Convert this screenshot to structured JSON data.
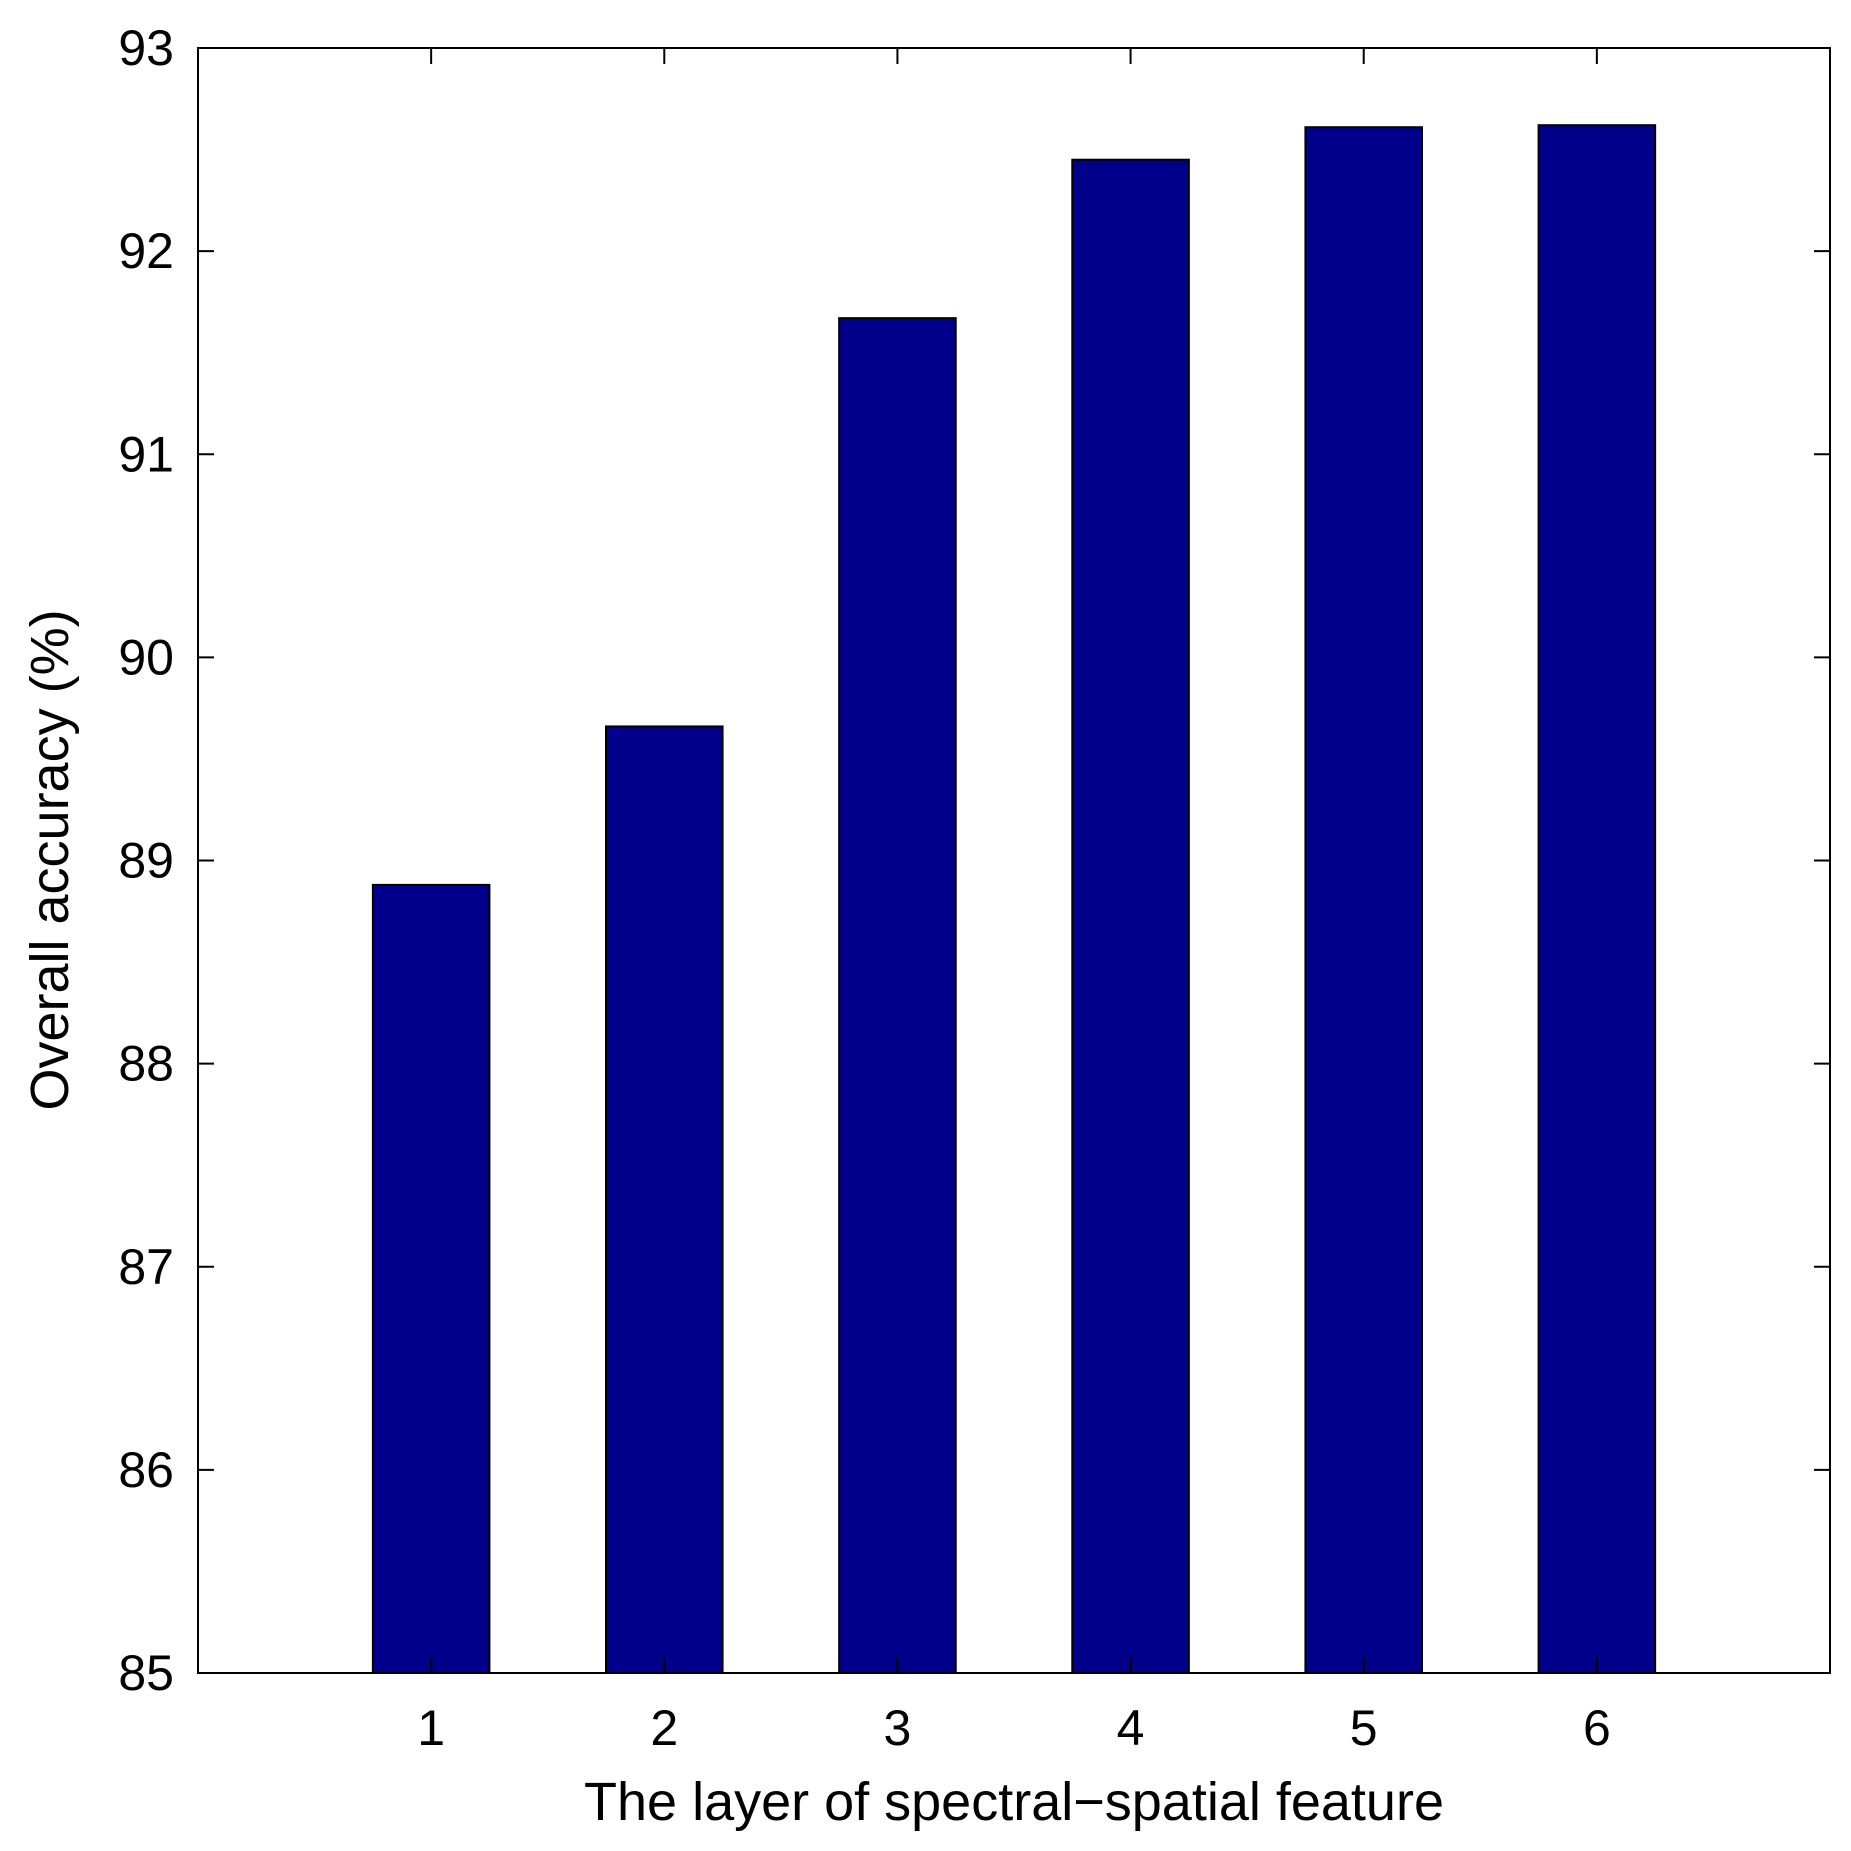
{
  "chart_data": {
    "type": "bar",
    "categories": [
      "1",
      "2",
      "3",
      "4",
      "5",
      "6"
    ],
    "values": [
      88.88,
      89.66,
      91.67,
      92.45,
      92.61,
      92.62
    ],
    "xlabel": "The layer of spectral−spatial feature",
    "ylabel": "Overall accuracy (%)",
    "ylim": [
      85,
      93
    ],
    "xlim": [
      0,
      7
    ],
    "yticks": [
      85,
      86,
      87,
      88,
      89,
      90,
      91,
      92,
      93
    ],
    "xticks": [
      1,
      2,
      3,
      4,
      5,
      6
    ],
    "grid": false,
    "bar_color": "#00008B",
    "edge_color": "#000000"
  }
}
